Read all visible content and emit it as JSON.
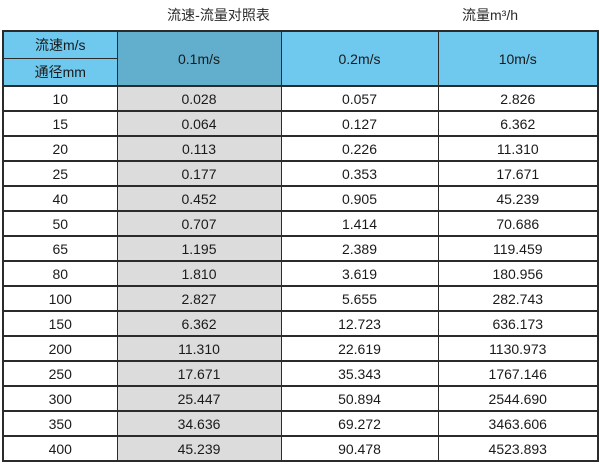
{
  "page": {
    "title_left": "流速-流量对照表",
    "title_right": "流量m³/h"
  },
  "chart_data": {
    "type": "table",
    "title": "流速-流量对照表",
    "right_header": "流量m³/h",
    "corner": {
      "top": "流速m/s",
      "bottom": "通径mm"
    },
    "velocity_columns": [
      "0.1m/s",
      "0.2m/s",
      "10m/s"
    ],
    "row_header_unit": "mm",
    "rows": [
      [
        "10",
        "0.028",
        "0.057",
        "2.826"
      ],
      [
        "15",
        "0.064",
        "0.127",
        "6.362"
      ],
      [
        "20",
        "0.113",
        "0.226",
        "11.310"
      ],
      [
        "25",
        "0.177",
        "0.353",
        "17.671"
      ],
      [
        "40",
        "0.452",
        "0.905",
        "45.239"
      ],
      [
        "50",
        "0.707",
        "1.414",
        "70.686"
      ],
      [
        "65",
        "1.195",
        "2.389",
        "119.459"
      ],
      [
        "80",
        "1.810",
        "3.619",
        "180.956"
      ],
      [
        "100",
        "2.827",
        "5.655",
        "282.743"
      ],
      [
        "150",
        "6.362",
        "12.723",
        "636.173"
      ],
      [
        "200",
        "11.310",
        "22.619",
        "1130.973"
      ],
      [
        "250",
        "17.671",
        "35.343",
        "1767.146"
      ],
      [
        "300",
        "25.447",
        "50.894",
        "2544.690"
      ],
      [
        "350",
        "34.636",
        "69.272",
        "3463.606"
      ],
      [
        "400",
        "45.239",
        "90.478",
        "4523.893"
      ]
    ]
  },
  "colors": {
    "header_blue": "#6fc8ee",
    "header_blue_dark": "#62aecd",
    "highlight_column_gray": "#dcdcdc",
    "border": "#2b2b2b",
    "text": "#1a1a1a"
  }
}
